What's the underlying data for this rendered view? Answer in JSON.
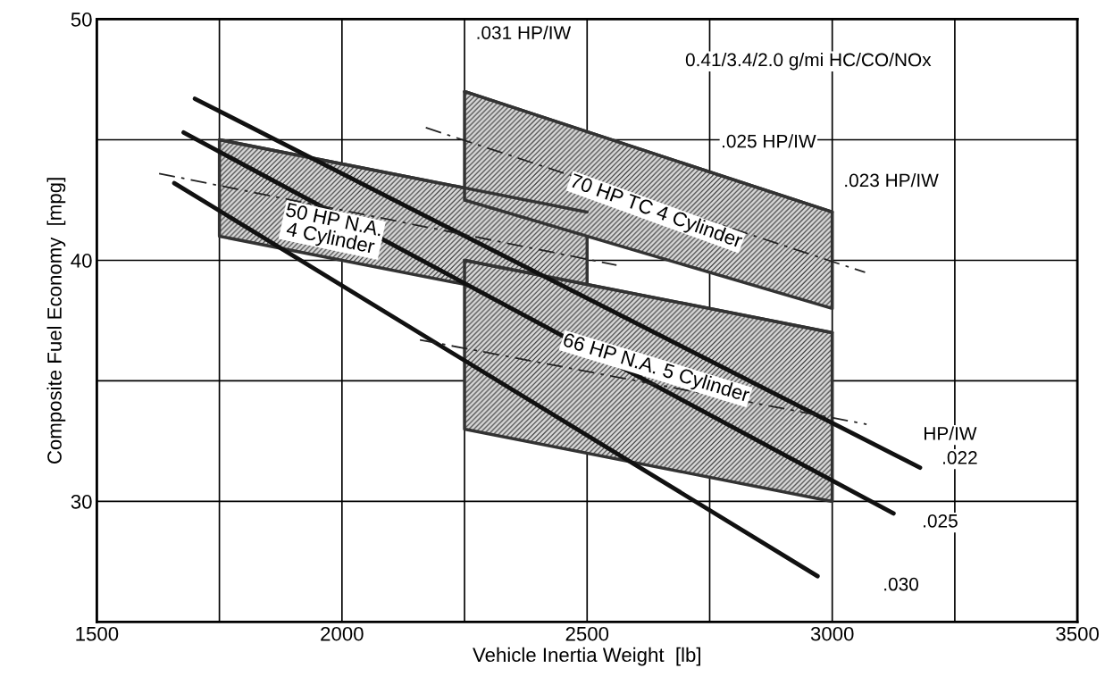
{
  "chart_data": {
    "type": "line",
    "xlabel": "Vehicle Inertia Weight  [lb]",
    "ylabel": "Composite Fuel Economy  [mpg]",
    "xlim": [
      1500,
      3500
    ],
    "ylim": [
      25,
      50
    ],
    "xticks": [
      1500,
      {
        "value": 1750,
        "label": null
      },
      2000,
      {
        "value": 2250,
        "label": null
      },
      2500,
      {
        "value": 2750,
        "label": null
      },
      3000,
      {
        "value": 3250,
        "label": null
      },
      3500
    ],
    "yticks": [
      {
        "value": 25,
        "label": null
      },
      30,
      {
        "value": 35,
        "label": null
      },
      40,
      {
        "value": 45,
        "label": null
      },
      50
    ],
    "grid": true,
    "legend": false,
    "series": [
      {
        "type": "line",
        "color": "#333333",
        "x": [
          1750,
          2500
        ],
        "values": [
          45,
          42
        ],
        "upper": [
          45,
          42
        ],
        "lower": [
          41,
          38
        ]
      },
      {
        "type": "line",
        "color": "#333333",
        "x": [
          2250,
          3000
        ],
        "values": [
          40,
          37
        ],
        "upper": [
          40,
          37
        ],
        "lower": [
          33,
          30
        ]
      },
      {
        "type": "line",
        "color": "#333333",
        "x": [
          2250,
          3000
        ],
        "values": [
          47,
          42
        ],
        "upper": [
          47,
          42
        ],
        "lower": [
          42.5,
          38
        ]
      },
      {
        "color": "#111111",
        "x": [
          1700,
          3179
        ],
        "values": [
          46.7,
          31.4
        ]
      },
      {
        "color": "#111111",
        "x": [
          1677,
          3125
        ],
        "values": [
          45.3,
          29.5
        ]
      },
      {
        "color": "#111111",
        "x": [
          1658,
          2970
        ],
        "values": [
          43.2,
          26.9
        ]
      },
      {
        "color": "#222222",
        "line_style": "dashed",
        "x": [
          2171,
          3067
        ],
        "values": [
          45.5,
          39.5
        ]
      },
      {
        "color": "#222222",
        "line_style": "dashed",
        "x": [
          1627,
          2560
        ],
        "values": [
          43.6,
          39.8
        ]
      },
      {
        "color": "#222222",
        "line_style": "dashed",
        "x": [
          2159,
          3070
        ],
        "values": [
          36.7,
          33.2
        ]
      }
    ],
    "annotations": [
      ".031 HP/IW",
      "0.41/3.4/2.0 g/mi HC/CO/NOx",
      ".025 HP/IW",
      ".023 HP/IW",
      "50 HP N.A.\n4 Cylinder",
      "70 HP TC 4 Cylinder",
      "66 HP N.A. 5 Cylinder",
      "HP/IW",
      ".022",
      ".025",
      ".030"
    ]
  }
}
